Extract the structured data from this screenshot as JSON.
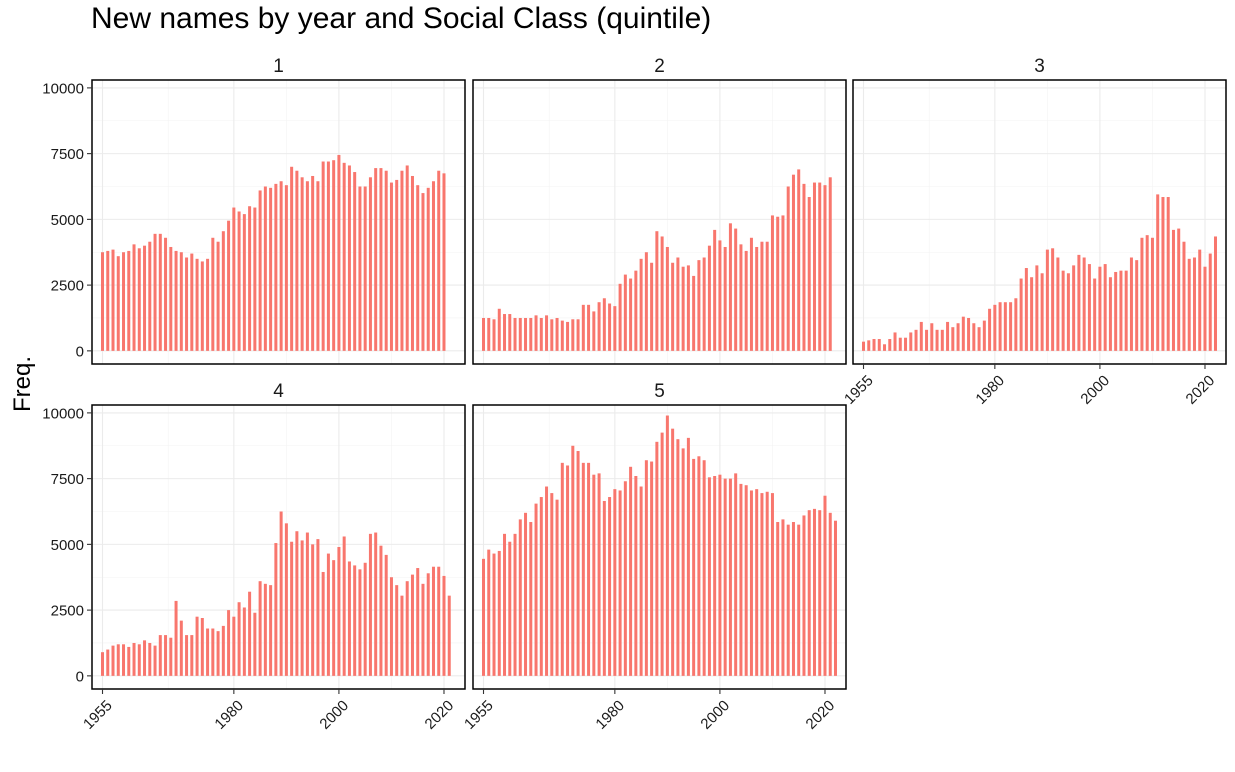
{
  "chart_data": {
    "type": "bar",
    "title": "New names by year and Social Class (quintile)",
    "ylabel": "Freq.",
    "xlabel": "",
    "xlim": [
      1953,
      2024
    ],
    "ylim": [
      -500,
      10300
    ],
    "x_ticks": [
      1955,
      1980,
      2000,
      2020
    ],
    "y_ticks": [
      0,
      2500,
      5000,
      7500,
      10000
    ],
    "bar_color": "#F8766D",
    "grid": true,
    "panels": [
      {
        "label": "1",
        "series": [
          {
            "start_year": 1955,
            "values": [
              3750,
              3800,
              3850,
              3600,
              3750,
              3800,
              4050,
              3900,
              4000,
              4150,
              4450,
              4450,
              4300,
              3950,
              3800,
              3750,
              3550,
              3700,
              3500,
              3400,
              3500,
              4300,
              4150,
              4550,
              4950,
              5450,
              5300,
              5200,
              5500,
              5450,
              6100,
              6250,
              6200,
              6350,
              6450,
              6300,
              7000,
              6850,
              6600,
              6450,
              6650,
              6450,
              7200,
              7200,
              7250,
              7450,
              7150,
              7050,
              6800,
              6250,
              6250,
              6600,
              6950,
              6950,
              6850,
              6400,
              6500,
              6850,
              7050,
              6650,
              6300,
              6000,
              6200,
              6450,
              6850,
              6750
            ]
          }
        ]
      },
      {
        "label": "2",
        "series": [
          {
            "start_year": 1955,
            "values": [
              1250,
              1250,
              1200,
              1600,
              1400,
              1400,
              1250,
              1250,
              1250,
              1250,
              1350,
              1250,
              1350,
              1200,
              1250,
              1150,
              1100,
              1200,
              1200,
              1750,
              1750,
              1500,
              1850,
              2000,
              1800,
              1700,
              2550,
              2900,
              2750,
              3050,
              3500,
              3750,
              3350,
              4550,
              4350,
              3950,
              3350,
              3550,
              3200,
              3250,
              2850,
              3450,
              3550,
              4000,
              4600,
              4200,
              3950,
              4850,
              4650,
              4050,
              3800,
              4300,
              3950,
              4150,
              4150,
              5150,
              5100,
              5150,
              6250,
              6700,
              6900,
              6350,
              5850,
              6400,
              6400,
              6300,
              6600
            ]
          }
        ]
      },
      {
        "label": "3",
        "series": [
          {
            "start_year": 1955,
            "values": [
              350,
              400,
              450,
              450,
              250,
              450,
              700,
              500,
              500,
              700,
              800,
              1100,
              800,
              1050,
              800,
              800,
              1100,
              900,
              1050,
              1300,
              1250,
              1050,
              900,
              1150,
              1600,
              1750,
              1850,
              1850,
              1850,
              2000,
              2750,
              3150,
              2800,
              3250,
              2950,
              3850,
              3900,
              3550,
              3050,
              2950,
              3250,
              3650,
              3550,
              3300,
              2750,
              3200,
              3300,
              2800,
              3000,
              3050,
              3050,
              3550,
              3450,
              4300,
              4400,
              4300,
              5950,
              5850,
              5850,
              4600,
              4650,
              4150,
              3500,
              3550,
              3850,
              3200,
              3700,
              4350
            ]
          }
        ]
      },
      {
        "label": "4",
        "series": [
          {
            "start_year": 1955,
            "values": [
              900,
              1000,
              1150,
              1200,
              1200,
              1100,
              1250,
              1200,
              1350,
              1250,
              1150,
              1550,
              1550,
              1450,
              2850,
              2100,
              1550,
              1550,
              2250,
              2200,
              1800,
              1800,
              1700,
              1900,
              2500,
              2250,
              2800,
              2600,
              3200,
              2400,
              3600,
              3500,
              3450,
              5050,
              6250,
              5800,
              5100,
              5500,
              5150,
              5450,
              5000,
              5200,
              3950,
              4650,
              4400,
              4900,
              5300,
              4350,
              4200,
              4050,
              4300,
              5400,
              5450,
              4950,
              4600,
              3750,
              3450,
              3050,
              3600,
              3850,
              4100,
              3500,
              3900,
              4150,
              4150,
              3800,
              3050
            ]
          }
        ]
      },
      {
        "label": "5",
        "series": [
          {
            "start_year": 1955,
            "values": [
              4450,
              4800,
              4650,
              4750,
              5400,
              5100,
              5400,
              5950,
              6200,
              5850,
              6550,
              6800,
              7200,
              6950,
              6700,
              8100,
              8000,
              8750,
              8550,
              8100,
              8100,
              7650,
              7700,
              6650,
              6800,
              7100,
              7050,
              7400,
              7950,
              7600,
              7200,
              8200,
              8150,
              8900,
              9250,
              9900,
              9400,
              9000,
              8650,
              9050,
              8250,
              8350,
              8200,
              7550,
              7600,
              7650,
              7500,
              7500,
              7700,
              7300,
              7250,
              7050,
              7100,
              6950,
              7000,
              6950,
              5850,
              5950,
              5750,
              5850,
              5750,
              6100,
              6300,
              6350,
              6300,
              6850,
              6200,
              5900
            ]
          }
        ]
      }
    ]
  }
}
